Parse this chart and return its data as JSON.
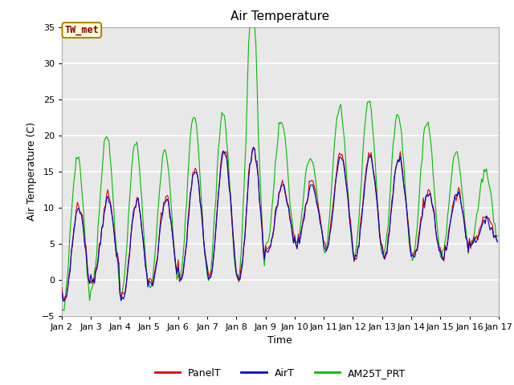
{
  "title": "Air Temperature",
  "xlabel": "Time",
  "ylabel": "Air Temperature (C)",
  "ylim": [
    -5,
    35
  ],
  "yticks": [
    -5,
    0,
    5,
    10,
    15,
    20,
    25,
    30,
    35
  ],
  "bg_color": "#e8e8e8",
  "grid_color": "#ffffff",
  "annotation_text": "TW_met",
  "annotation_bg": "#ffffdd",
  "annotation_border": "#aa8800",
  "annotation_text_color": "#880000",
  "legend_labels": [
    "PanelT",
    "AirT",
    "AM25T_PRT"
  ],
  "line_colors": [
    "#dd0000",
    "#0000cc",
    "#00bb00"
  ],
  "xtick_labels": [
    "Jan 2",
    "Jan 3",
    "Jan 4",
    "Jan 5",
    "Jan 6",
    "Jan 7",
    "Jan 8",
    "Jan 9",
    "Jan 10",
    "Jan 11",
    "Jan 12",
    "Jan 13",
    "Jan 14",
    "Jan 15",
    "Jan 16",
    "Jan 17"
  ],
  "xtick_break": 10,
  "n_pts_per_day": 24,
  "n_days": 15,
  "daily_min_air": [
    -3,
    0,
    -3,
    -1,
    0,
    0,
    0,
    4,
    5,
    4,
    3,
    3,
    3,
    3,
    5
  ],
  "daily_max_air": [
    10,
    11,
    11,
    11,
    15,
    18,
    18,
    13,
    13,
    17,
    17,
    17,
    12,
    12,
    8
  ],
  "daily_min_green": [
    -4,
    -1,
    -2,
    -1,
    0,
    0,
    0,
    5,
    5,
    4,
    3,
    3,
    3,
    3,
    5
  ],
  "daily_max_green": [
    17,
    20,
    19,
    18,
    23,
    23,
    32,
    22,
    17,
    24,
    25,
    23,
    22,
    18,
    15
  ],
  "peak_hour_air": 14,
  "trough_hour_air": 4,
  "peak_hour_green": 13,
  "trough_hour_green": 4
}
